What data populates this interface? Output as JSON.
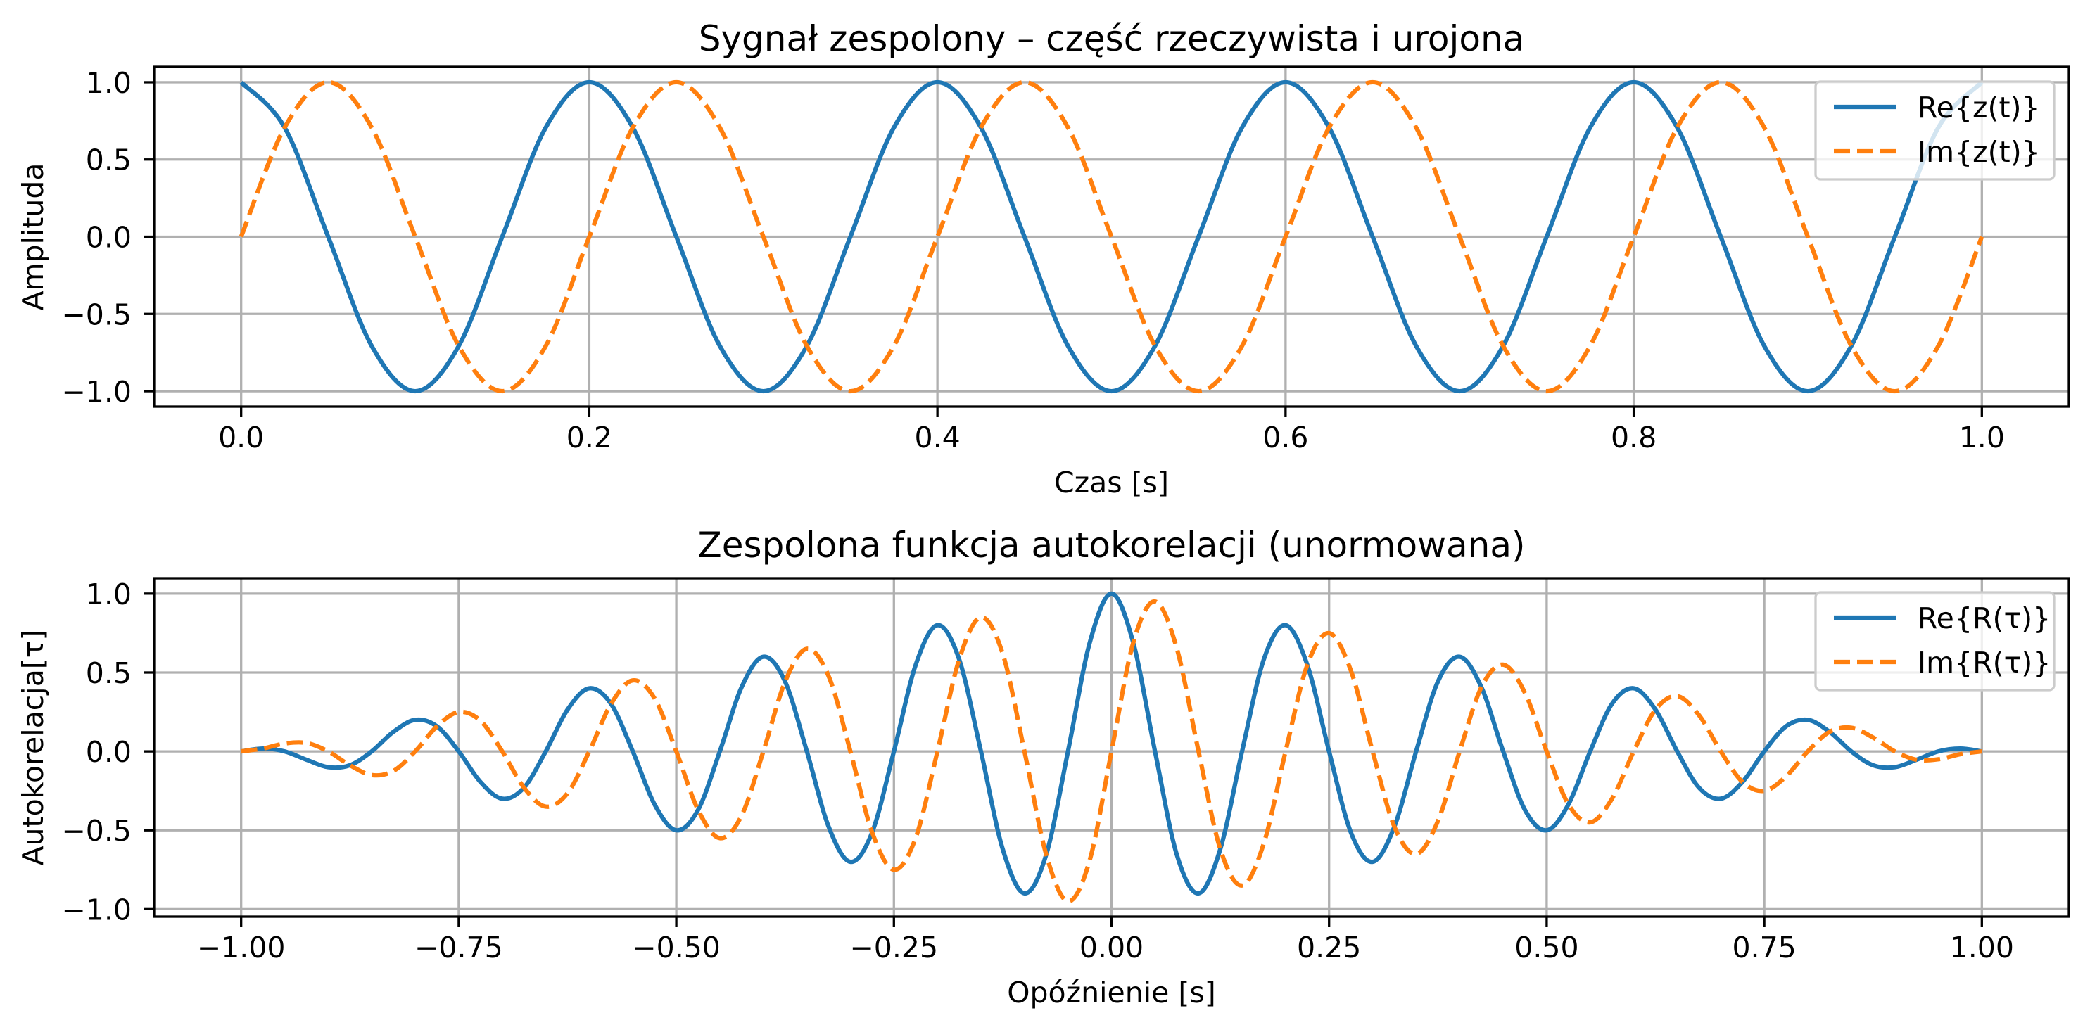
{
  "chart_data": [
    {
      "type": "line",
      "title": "Sygnał zespolony – część rzeczywista i urojona",
      "xlabel": "Czas [s]",
      "ylabel": "Amplituda",
      "xlim": [
        -0.05,
        1.05
      ],
      "ylim": [
        -1.1,
        1.1
      ],
      "grid": true,
      "legend_placement": "top-right",
      "xticks": [
        0,
        0.2,
        0.4,
        0.6,
        0.8,
        1.0
      ],
      "xtick_labels": [
        "0.0",
        "0.2",
        "0.4",
        "0.6",
        "0.8",
        "1.0"
      ],
      "yticks": [
        -1.0,
        -0.5,
        0.0,
        0.5,
        1.0
      ],
      "ytick_labels": [
        "−1.0",
        "−0.5",
        "0.0",
        "0.5",
        "1.0"
      ],
      "x_start": 0,
      "x_step": 0.025,
      "series": [
        {
          "name": "Re{z(t)}",
          "color": "#1f77b4",
          "style": "solid",
          "values": [
            1,
            0.707,
            0,
            -0.707,
            -1,
            -0.707,
            0,
            0.707,
            1,
            0.707,
            0,
            -0.707,
            -1,
            -0.707,
            0,
            0.707,
            1,
            0.707,
            0,
            -0.707,
            -1,
            -0.707,
            0,
            0.707,
            1,
            0.707,
            0,
            -0.707,
            -1,
            -0.707,
            0,
            0.707,
            1,
            0.707,
            0,
            -0.707,
            -1,
            -0.707,
            0,
            0.707,
            1
          ]
        },
        {
          "name": "Im{z(t)}",
          "color": "#ff7f0e",
          "style": "dashed",
          "values": [
            0,
            0.707,
            1,
            0.707,
            0,
            -0.707,
            -1,
            -0.707,
            0,
            0.707,
            1,
            0.707,
            0,
            -0.707,
            -1,
            -0.707,
            0,
            0.707,
            1,
            0.707,
            0,
            -0.707,
            -1,
            -0.707,
            0,
            0.707,
            1,
            0.707,
            0,
            -0.707,
            -1,
            -0.707,
            0,
            0.707,
            1,
            0.707,
            0,
            -0.707,
            -1,
            -0.707,
            0
          ]
        }
      ]
    },
    {
      "type": "line",
      "title": "Zespolona funkcja autokorelacji (unormowana)",
      "xlabel": "Opóźnienie [s]",
      "ylabel": "Autokorelacja[τ]",
      "xlim": [
        -1.1,
        1.1
      ],
      "ylim": [
        -1.0475,
        1.0975
      ],
      "grid": true,
      "legend_placement": "top-right",
      "xticks": [
        -1.0,
        -0.75,
        -0.5,
        -0.25,
        0,
        0.25,
        0.5,
        0.75,
        1.0
      ],
      "xtick_labels": [
        "−1.00",
        "−0.75",
        "−0.50",
        "−0.25",
        "0.00",
        "0.25",
        "0.50",
        "0.75",
        "1.00"
      ],
      "yticks": [
        -1.0,
        -0.5,
        0.0,
        0.5,
        1.0
      ],
      "ytick_labels": [
        "−1.0",
        "−0.5",
        "0.0",
        "0.5",
        "1.0"
      ],
      "x_start": -1,
      "x_step": 0.025,
      "series": [
        {
          "name": "Re{R(τ)}",
          "color": "#1f77b4",
          "style": "solid",
          "values": [
            0,
            0.018,
            0,
            -0.053,
            -0.1,
            -0.088,
            0,
            0.124,
            0.2,
            0.159,
            0,
            -0.194,
            -0.3,
            -0.23,
            0,
            0.265,
            0.4,
            0.301,
            0,
            -0.336,
            -0.5,
            -0.371,
            0,
            0.407,
            0.6,
            0.442,
            0,
            -0.477,
            -0.7,
            -0.513,
            0,
            0.548,
            0.8,
            0.583,
            0,
            -0.619,
            -0.9,
            -0.654,
            0,
            0.689,
            1,
            0.689,
            0,
            -0.654,
            -0.9,
            -0.619,
            0,
            0.583,
            0.8,
            0.548,
            0,
            -0.513,
            -0.7,
            -0.477,
            0,
            0.442,
            0.6,
            0.407,
            0,
            -0.371,
            -0.5,
            -0.336,
            0,
            0.301,
            0.4,
            0.265,
            0,
            -0.23,
            -0.3,
            -0.194,
            0,
            0.159,
            0.2,
            0.124,
            0,
            -0.088,
            -0.1,
            -0.053,
            0,
            0.018,
            0
          ]
        },
        {
          "name": "Im{R(τ)}",
          "color": "#ff7f0e",
          "style": "dashed",
          "values": [
            0,
            0.018,
            0.05,
            0.053,
            0,
            -0.088,
            -0.15,
            -0.124,
            0,
            0.159,
            0.25,
            0.194,
            0,
            -0.23,
            -0.35,
            -0.265,
            0,
            0.301,
            0.45,
            0.336,
            0,
            -0.371,
            -0.55,
            -0.407,
            0,
            0.442,
            0.65,
            0.477,
            0,
            -0.513,
            -0.75,
            -0.548,
            0,
            0.583,
            0.85,
            0.619,
            0,
            -0.654,
            -0.95,
            -0.689,
            0,
            0.689,
            0.95,
            0.654,
            0,
            -0.619,
            -0.85,
            -0.583,
            0,
            0.548,
            0.75,
            0.513,
            0,
            -0.477,
            -0.65,
            -0.442,
            0,
            0.407,
            0.55,
            0.371,
            0,
            -0.336,
            -0.45,
            -0.301,
            0,
            0.265,
            0.35,
            0.23,
            0,
            -0.194,
            -0.25,
            -0.159,
            0,
            0.124,
            0.15,
            0.088,
            0,
            -0.053,
            -0.05,
            -0.018,
            0
          ]
        }
      ]
    }
  ]
}
